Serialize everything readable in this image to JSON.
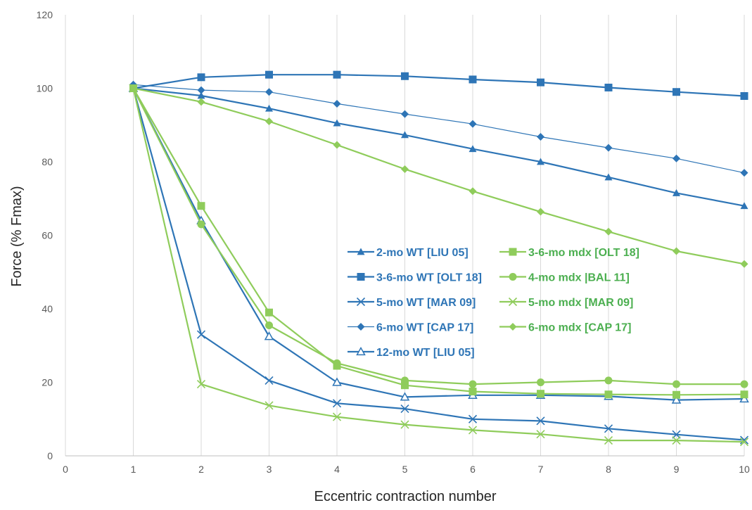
{
  "chart_data": {
    "type": "line",
    "title": "",
    "xlabel": "Eccentric contraction number",
    "ylabel": "Force (% Fmax)",
    "xlim": [
      0,
      10
    ],
    "ylim": [
      0,
      120
    ],
    "x_ticks": [
      0,
      1,
      2,
      3,
      4,
      5,
      6,
      7,
      8,
      9,
      10
    ],
    "y_ticks": [
      0,
      20,
      40,
      60,
      80,
      100,
      120
    ],
    "grid": "vertical gridlines",
    "legend_position": "center-right",
    "colors": {
      "wt": "#2E75B6",
      "mdx": "#8FCC5B",
      "mdx_text": "#4CAF50",
      "grid": "#d9d9d9",
      "axis": "#bfbfbf"
    },
    "series": [
      {
        "name": "2-mo WT  [LIU 05]",
        "group": "wt",
        "marker": "triangle-filled",
        "line": "thick",
        "x": [
          1,
          2,
          3,
          4,
          5,
          6,
          7,
          8,
          9,
          10
        ],
        "y": [
          100,
          98,
          94.5,
          90.5,
          87.3,
          83.5,
          80,
          75.8,
          71.5,
          68
        ]
      },
      {
        "name": "3-6-mo WT [OLT 18]",
        "group": "wt",
        "marker": "square-filled",
        "line": "thick",
        "x": [
          1,
          2,
          3,
          4,
          5,
          6,
          7,
          8,
          9,
          10
        ],
        "y": [
          100,
          103,
          103.7,
          103.7,
          103.3,
          102.4,
          101.6,
          100.2,
          99,
          97.9
        ]
      },
      {
        "name": "5-mo WT  [MAR 09]",
        "group": "wt",
        "marker": "x",
        "line": "thick",
        "x": [
          1,
          2,
          3,
          4,
          5,
          6,
          7,
          8,
          9,
          10
        ],
        "y": [
          100,
          33,
          20.5,
          14.3,
          12.8,
          10,
          9.5,
          7.4,
          5.8,
          4.3
        ]
      },
      {
        "name": "6-mo WT [CAP 17]",
        "group": "wt",
        "marker": "diamond-filled",
        "line": "thin",
        "x": [
          1,
          2,
          3,
          4,
          5,
          6,
          7,
          8,
          9,
          10
        ],
        "y": [
          101,
          99.5,
          99,
          95.8,
          93,
          90.3,
          86.8,
          83.8,
          80.9,
          77
        ]
      },
      {
        "name": "12-mo WT [LIU 05]",
        "group": "wt",
        "marker": "triangle-open",
        "line": "thick",
        "x": [
          1,
          2,
          3,
          4,
          5,
          6,
          7,
          8,
          9,
          10
        ],
        "y": [
          100,
          64,
          32.5,
          20,
          16,
          16.5,
          16.5,
          16.2,
          15.2,
          15.5
        ]
      },
      {
        "name": "3-6-mo mdx [OLT 18]",
        "group": "mdx",
        "marker": "square-filled",
        "line": "thick",
        "x": [
          1,
          2,
          3,
          4,
          5,
          6,
          7,
          8,
          9,
          10
        ],
        "y": [
          100,
          68,
          39,
          24.5,
          19.2,
          17.5,
          16.9,
          16.7,
          16.6,
          16.7
        ]
      },
      {
        "name": "4-mo mdx |BAL 11]",
        "group": "mdx",
        "marker": "circle-filled",
        "line": "thick",
        "x": [
          1,
          2,
          3,
          4,
          5,
          6,
          7,
          8,
          9,
          10
        ],
        "y": [
          100,
          63,
          35.5,
          25.2,
          20.5,
          19.5,
          20,
          20.5,
          19.5,
          19.5
        ]
      },
      {
        "name": "5-mo mdx [MAR 09]",
        "group": "mdx",
        "marker": "x",
        "line": "thick",
        "x": [
          1,
          2,
          3,
          4,
          5,
          6,
          7,
          8,
          9,
          10
        ],
        "y": [
          100,
          19.5,
          13.7,
          10.6,
          8.5,
          7,
          5.9,
          4.2,
          4.2,
          3.8
        ]
      },
      {
        "name": "6-mo mdx [CAP 17]",
        "group": "mdx",
        "marker": "diamond-filled",
        "line": "thick",
        "x": [
          1,
          2,
          3,
          4,
          5,
          6,
          7,
          8,
          9,
          10
        ],
        "y": [
          100,
          96.3,
          91,
          84.6,
          78,
          72,
          66.4,
          61,
          55.7,
          52.2
        ]
      }
    ]
  }
}
